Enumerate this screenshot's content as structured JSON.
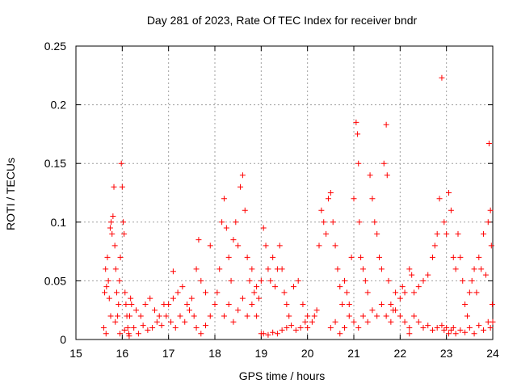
{
  "chart_data": {
    "type": "scatter",
    "title": "Day 281 of 2023, Rate Of TEC Index for receiver bndr",
    "xlabel": "GPS time / hours",
    "ylabel": "ROTI / TECUs",
    "xlim": [
      15,
      24
    ],
    "ylim": [
      0,
      0.25
    ],
    "x_ticks": [
      "15",
      "16",
      "17",
      "18",
      "19",
      "20",
      "21",
      "22",
      "23",
      "24"
    ],
    "y_ticks": [
      "0",
      "0.05",
      "0.1",
      "0.15",
      "0.2",
      "0.25"
    ],
    "grid": true,
    "marker": "+",
    "color": "#ff0000",
    "series": [
      {
        "name": "ROTI",
        "points": [
          [
            15.6,
            0.01
          ],
          [
            15.62,
            0.04
          ],
          [
            15.64,
            0.06
          ],
          [
            15.66,
            0.045
          ],
          [
            15.68,
            0.07
          ],
          [
            15.7,
            0.05
          ],
          [
            15.72,
            0.035
          ],
          [
            15.74,
            0.095
          ],
          [
            15.76,
            0.1
          ],
          [
            15.78,
            0.09
          ],
          [
            15.8,
            0.105
          ],
          [
            15.82,
            0.13
          ],
          [
            15.84,
            0.08
          ],
          [
            15.86,
            0.06
          ],
          [
            15.88,
            0.04
          ],
          [
            15.9,
            0.02
          ],
          [
            15.92,
            0.03
          ],
          [
            15.94,
            0.05
          ],
          [
            15.96,
            0.07
          ],
          [
            15.98,
            0.15
          ],
          [
            16.0,
            0.13
          ],
          [
            16.02,
            0.1
          ],
          [
            16.04,
            0.09
          ],
          [
            16.06,
            0.04
          ],
          [
            16.08,
            0.03
          ],
          [
            16.1,
            0.02
          ],
          [
            16.12,
            0.01
          ],
          [
            16.14,
            0.005
          ],
          [
            16.16,
            0.02
          ],
          [
            16.18,
            0.035
          ],
          [
            15.65,
            0.005
          ],
          [
            15.75,
            0.02
          ],
          [
            15.85,
            0.015
          ],
          [
            15.95,
            0.005
          ],
          [
            16.05,
            0.008
          ],
          [
            16.15,
            0.003
          ],
          [
            16.25,
            0.01
          ],
          [
            16.35,
            0.005
          ],
          [
            16.45,
            0.012
          ],
          [
            16.55,
            0.008
          ],
          [
            16.2,
            0.03
          ],
          [
            16.3,
            0.025
          ],
          [
            16.4,
            0.02
          ],
          [
            16.5,
            0.03
          ],
          [
            16.6,
            0.035
          ],
          [
            16.7,
            0.025
          ],
          [
            16.8,
            0.02
          ],
          [
            16.9,
            0.03
          ],
          [
            17.0,
            0.03
          ],
          [
            17.1,
            0.035
          ],
          [
            16.65,
            0.01
          ],
          [
            16.75,
            0.015
          ],
          [
            16.85,
            0.012
          ],
          [
            16.95,
            0.02
          ],
          [
            17.05,
            0.015
          ],
          [
            17.15,
            0.01
          ],
          [
            17.25,
            0.02
          ],
          [
            17.35,
            0.015
          ],
          [
            17.45,
            0.025
          ],
          [
            17.55,
            0.02
          ],
          [
            17.1,
            0.058
          ],
          [
            17.2,
            0.04
          ],
          [
            17.3,
            0.045
          ],
          [
            17.4,
            0.03
          ],
          [
            17.5,
            0.035
          ],
          [
            17.6,
            0.06
          ],
          [
            17.65,
            0.085
          ],
          [
            17.7,
            0.05
          ],
          [
            17.8,
            0.04
          ],
          [
            17.9,
            0.08
          ],
          [
            17.6,
            0.01
          ],
          [
            17.7,
            0.005
          ],
          [
            17.8,
            0.012
          ],
          [
            17.9,
            0.02
          ],
          [
            18.0,
            0.03
          ],
          [
            18.05,
            0.04
          ],
          [
            18.1,
            0.06
          ],
          [
            18.15,
            0.1
          ],
          [
            18.2,
            0.12
          ],
          [
            18.25,
            0.095
          ],
          [
            18.3,
            0.07
          ],
          [
            18.35,
            0.05
          ],
          [
            18.4,
            0.085
          ],
          [
            18.45,
            0.1
          ],
          [
            18.5,
            0.08
          ],
          [
            18.55,
            0.13
          ],
          [
            18.6,
            0.14
          ],
          [
            18.65,
            0.11
          ],
          [
            18.7,
            0.07
          ],
          [
            18.75,
            0.05
          ],
          [
            18.2,
            0.02
          ],
          [
            18.3,
            0.03
          ],
          [
            18.4,
            0.015
          ],
          [
            18.5,
            0.025
          ],
          [
            18.6,
            0.035
          ],
          [
            18.7,
            0.02
          ],
          [
            18.8,
            0.03
          ],
          [
            18.9,
            0.02
          ],
          [
            18.95,
            0.035
          ],
          [
            19.0,
            0.005
          ],
          [
            18.8,
            0.06
          ],
          [
            18.85,
            0.04
          ],
          [
            18.9,
            0.045
          ],
          [
            19.0,
            0.05
          ],
          [
            19.05,
            0.095
          ],
          [
            19.1,
            0.08
          ],
          [
            19.15,
            0.06
          ],
          [
            19.2,
            0.05
          ],
          [
            19.25,
            0.07
          ],
          [
            19.3,
            0.045
          ],
          [
            19.05,
            0.005
          ],
          [
            19.15,
            0.004
          ],
          [
            19.25,
            0.006
          ],
          [
            19.35,
            0.005
          ],
          [
            19.45,
            0.008
          ],
          [
            19.55,
            0.01
          ],
          [
            19.65,
            0.012
          ],
          [
            19.75,
            0.008
          ],
          [
            19.85,
            0.01
          ],
          [
            19.95,
            0.015
          ],
          [
            19.35,
            0.06
          ],
          [
            19.4,
            0.08
          ],
          [
            19.45,
            0.06
          ],
          [
            19.5,
            0.04
          ],
          [
            19.55,
            0.03
          ],
          [
            19.6,
            0.02
          ],
          [
            19.7,
            0.045
          ],
          [
            19.8,
            0.05
          ],
          [
            19.9,
            0.03
          ],
          [
            20.0,
            0.02
          ],
          [
            20.0,
            0.01
          ],
          [
            20.1,
            0.015
          ],
          [
            20.15,
            0.02
          ],
          [
            20.2,
            0.025
          ],
          [
            20.25,
            0.08
          ],
          [
            20.3,
            0.11
          ],
          [
            20.35,
            0.1
          ],
          [
            20.4,
            0.09
          ],
          [
            20.45,
            0.12
          ],
          [
            20.5,
            0.125
          ],
          [
            20.55,
            0.1
          ],
          [
            20.6,
            0.08
          ],
          [
            20.65,
            0.06
          ],
          [
            20.7,
            0.045
          ],
          [
            20.75,
            0.03
          ],
          [
            20.8,
            0.05
          ],
          [
            20.85,
            0.04
          ],
          [
            20.9,
            0.03
          ],
          [
            20.95,
            0.07
          ],
          [
            21.0,
            0.12
          ],
          [
            21.05,
            0.185
          ],
          [
            21.08,
            0.175
          ],
          [
            21.1,
            0.15
          ],
          [
            21.12,
            0.1
          ],
          [
            21.15,
            0.07
          ],
          [
            21.2,
            0.06
          ],
          [
            21.25,
            0.05
          ],
          [
            21.3,
            0.04
          ],
          [
            21.35,
            0.14
          ],
          [
            21.4,
            0.12
          ],
          [
            21.45,
            0.1
          ],
          [
            21.5,
            0.09
          ],
          [
            21.55,
            0.07
          ],
          [
            21.6,
            0.06
          ],
          [
            21.65,
            0.15
          ],
          [
            21.7,
            0.183
          ],
          [
            21.72,
            0.14
          ],
          [
            21.75,
            0.05
          ],
          [
            21.8,
            0.03
          ],
          [
            21.85,
            0.025
          ],
          [
            20.5,
            0.01
          ],
          [
            20.6,
            0.015
          ],
          [
            20.7,
            0.005
          ],
          [
            20.8,
            0.01
          ],
          [
            20.9,
            0.02
          ],
          [
            21.0,
            0.015
          ],
          [
            21.1,
            0.01
          ],
          [
            21.2,
            0.02
          ],
          [
            21.3,
            0.015
          ],
          [
            21.4,
            0.025
          ],
          [
            21.5,
            0.02
          ],
          [
            21.6,
            0.03
          ],
          [
            21.7,
            0.02
          ],
          [
            21.8,
            0.015
          ],
          [
            21.9,
            0.025
          ],
          [
            22.0,
            0.02
          ],
          [
            22.1,
            0.015
          ],
          [
            22.2,
            0.01
          ],
          [
            22.3,
            0.02
          ],
          [
            22.4,
            0.015
          ],
          [
            21.9,
            0.04
          ],
          [
            22.0,
            0.035
          ],
          [
            22.05,
            0.045
          ],
          [
            22.1,
            0.04
          ],
          [
            22.2,
            0.06
          ],
          [
            22.25,
            0.055
          ],
          [
            22.3,
            0.04
          ],
          [
            22.4,
            0.045
          ],
          [
            22.5,
            0.05
          ],
          [
            22.6,
            0.055
          ],
          [
            22.5,
            0.01
          ],
          [
            22.6,
            0.012
          ],
          [
            22.7,
            0.008
          ],
          [
            22.8,
            0.01
          ],
          [
            22.9,
            0.012
          ],
          [
            22.95,
            0.008
          ],
          [
            23.0,
            0.01
          ],
          [
            23.05,
            0.005
          ],
          [
            23.1,
            0.008
          ],
          [
            23.15,
            0.01
          ],
          [
            22.7,
            0.07
          ],
          [
            22.75,
            0.08
          ],
          [
            22.8,
            0.09
          ],
          [
            22.85,
            0.12
          ],
          [
            22.9,
            0.223
          ],
          [
            22.95,
            0.1
          ],
          [
            23.0,
            0.09
          ],
          [
            23.05,
            0.125
          ],
          [
            23.1,
            0.11
          ],
          [
            23.15,
            0.07
          ],
          [
            23.2,
            0.06
          ],
          [
            23.25,
            0.09
          ],
          [
            23.3,
            0.07
          ],
          [
            23.35,
            0.05
          ],
          [
            23.4,
            0.03
          ],
          [
            23.45,
            0.02
          ],
          [
            23.5,
            0.04
          ],
          [
            23.55,
            0.05
          ],
          [
            23.6,
            0.06
          ],
          [
            23.65,
            0.04
          ],
          [
            23.7,
            0.07
          ],
          [
            23.75,
            0.06
          ],
          [
            23.8,
            0.09
          ],
          [
            23.85,
            0.055
          ],
          [
            23.9,
            0.1
          ],
          [
            23.92,
            0.167
          ],
          [
            23.95,
            0.11
          ],
          [
            23.97,
            0.08
          ],
          [
            23.99,
            0.03
          ],
          [
            24.0,
            0.015
          ],
          [
            23.2,
            0.005
          ],
          [
            23.3,
            0.008
          ],
          [
            23.4,
            0.006
          ],
          [
            23.5,
            0.01
          ],
          [
            23.6,
            0.005
          ],
          [
            23.7,
            0.012
          ],
          [
            23.8,
            0.008
          ],
          [
            23.9,
            0.015
          ],
          [
            23.95,
            0.01
          ],
          [
            22.2,
            0.005
          ]
        ]
      }
    ]
  }
}
